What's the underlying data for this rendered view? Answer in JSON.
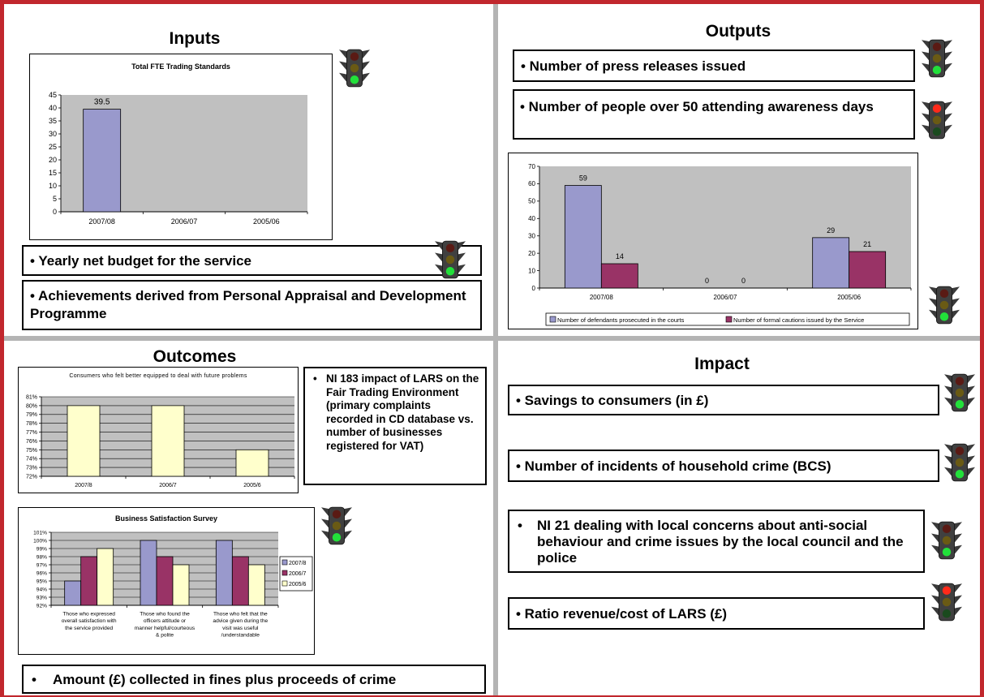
{
  "quadrants": {
    "inputs": {
      "title": "Inputs",
      "items": [
        "• Yearly net budget for the service",
        "• Achievements derived from Personal Appraisal and Development Programme"
      ]
    },
    "outputs": {
      "title": "Outputs",
      "items": [
        "• Number of press releases issued",
        "• Number of people over 50 attending awareness days"
      ]
    },
    "outcomes": {
      "title": "Outcomes",
      "items": [
        "NI 183 impact of LARS on the Fair Trading Environment (primary complaints recorded in CD database vs. number of businesses registered for VAT)",
        "Amount (£) collected in fines plus proceeds of crime"
      ]
    },
    "impact": {
      "title": "Impact",
      "items": [
        "• Savings to consumers (in £)",
        "• Number of incidents of household crime (BCS)",
        "NI 21 dealing with local concerns about anti-social behaviour and crime issues by the local council and the police",
        "• Ratio revenue/cost of LARS (£)"
      ]
    }
  },
  "bullet": "•",
  "traffic_lights": {
    "inputs-chart": "green",
    "inputs-budget": "green",
    "outputs-press": "green",
    "outputs-awareness": "red",
    "outputs-chart": "green",
    "outcomes-survey": "green",
    "impact-savings": "green",
    "impact-household": "green",
    "impact-ni21": "green",
    "impact-ratio": "red"
  },
  "colors": {
    "frame": "#c1272d",
    "divider": "#b4b4b4",
    "plot_bg": "#c0c0c0",
    "series_blue": "#9999cc",
    "series_maroon": "#993366",
    "series_cream": "#ffffcc"
  },
  "chart_data": [
    {
      "id": "fte",
      "type": "bar",
      "title": "Total FTE Trading Standards",
      "categories": [
        "2007/08",
        "2006/07",
        "2005/06"
      ],
      "values": [
        39.5,
        null,
        null
      ],
      "data_labels": [
        "39.5",
        "",
        ""
      ],
      "ylim": [
        0,
        45
      ],
      "yticks": [
        "0",
        "5",
        "10",
        "15",
        "20",
        "25",
        "30",
        "35",
        "40",
        "45"
      ],
      "grid": false
    },
    {
      "id": "prosecutions",
      "type": "bar",
      "title": "",
      "categories": [
        "2007/08",
        "2006/07",
        "2005/06"
      ],
      "series": [
        {
          "name": "Number of defendants prosecuted in the courts",
          "values": [
            59,
            0,
            29
          ],
          "labels": [
            "59",
            "0",
            "29"
          ]
        },
        {
          "name": "Number of formal cautions issued by the Service",
          "values": [
            14,
            0,
            21
          ],
          "labels": [
            "14",
            "0",
            "21"
          ]
        }
      ],
      "ylim": [
        0,
        70
      ],
      "yticks": [
        "0",
        "10",
        "20",
        "30",
        "40",
        "50",
        "60",
        "70"
      ],
      "legend": "bottom",
      "grid": false
    },
    {
      "id": "consumers",
      "type": "bar",
      "title": "Consumers who felt better equipped to deal with future problems",
      "categories": [
        "2007/8",
        "2006/7",
        "2005/6"
      ],
      "values": [
        80,
        80,
        75
      ],
      "ylim": [
        72,
        81
      ],
      "yticks": [
        "72%",
        "73%",
        "74%",
        "75%",
        "76%",
        "77%",
        "78%",
        "79%",
        "80%",
        "81%"
      ],
      "grid": true
    },
    {
      "id": "business",
      "type": "bar",
      "title": "Business Satisfaction Survey",
      "categories": [
        [
          "Those who expressed",
          "overall satisfaction with",
          "the service provided"
        ],
        [
          "Those who found the",
          "officers attitude or",
          "manner helpful/courteous",
          "& polite"
        ],
        [
          "Those who felt that the",
          "advice given during the",
          "visit was useful",
          "/understandable"
        ]
      ],
      "series": [
        {
          "name": "2007/8",
          "values": [
            95,
            100,
            100
          ]
        },
        {
          "name": "2006/7",
          "values": [
            98,
            98,
            98
          ]
        },
        {
          "name": "2005/6",
          "values": [
            99,
            97,
            97
          ]
        }
      ],
      "ylim": [
        92,
        101
      ],
      "yticks": [
        "92%",
        "93%",
        "94%",
        "95%",
        "96%",
        "97%",
        "98%",
        "99%",
        "100%",
        "101%"
      ],
      "legend": "right",
      "grid": true
    }
  ]
}
